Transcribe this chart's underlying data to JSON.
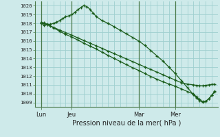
{
  "title": "Pression niveau de la mer( hPa )",
  "bg_color": "#ceeaea",
  "grid_color": "#9fcfcf",
  "line_color": "#1a5c1a",
  "ylim": [
    1008.5,
    1020.5
  ],
  "yticks": [
    1009,
    1010,
    1011,
    1012,
    1013,
    1014,
    1015,
    1016,
    1017,
    1018,
    1019,
    1020
  ],
  "xlim": [
    0,
    60
  ],
  "xtick_labels": [
    "Lun",
    "Jeu",
    "Mar",
    "Mer"
  ],
  "xtick_positions": [
    2,
    12,
    34,
    46
  ],
  "vline_positions": [
    2,
    12,
    34,
    46
  ],
  "s1_x": [
    2,
    3,
    4,
    5,
    6,
    7,
    8,
    9,
    10,
    11,
    12,
    13,
    14,
    15,
    16,
    17,
    18,
    19,
    20,
    22,
    24,
    26,
    28,
    30,
    32,
    34,
    36,
    38,
    40,
    42,
    44,
    46,
    48,
    50,
    52,
    53,
    54,
    55,
    56,
    57,
    58,
    59
  ],
  "s1_y": [
    1018.0,
    1017.8,
    1017.85,
    1017.9,
    1018.0,
    1018.15,
    1018.3,
    1018.55,
    1018.75,
    1018.85,
    1019.0,
    1019.25,
    1019.55,
    1019.8,
    1020.05,
    1019.9,
    1019.6,
    1019.2,
    1018.8,
    1018.3,
    1018.0,
    1017.6,
    1017.2,
    1016.8,
    1016.4,
    1016.0,
    1015.5,
    1014.9,
    1014.3,
    1013.7,
    1013.0,
    1012.3,
    1011.5,
    1010.7,
    1009.9,
    1009.5,
    1009.2,
    1009.05,
    1009.1,
    1009.4,
    1009.8,
    1010.3
  ],
  "s2_x": [
    2,
    3,
    4,
    5,
    6,
    8,
    10,
    12,
    14,
    16,
    18,
    20,
    22,
    24,
    26,
    28,
    30,
    32,
    34,
    36,
    38,
    40,
    42,
    44,
    46,
    48,
    50,
    52,
    53,
    54,
    55,
    56,
    57,
    58,
    59
  ],
  "s2_y": [
    1018.1,
    1018.05,
    1017.9,
    1017.7,
    1017.5,
    1017.1,
    1016.75,
    1016.45,
    1016.1,
    1015.75,
    1015.4,
    1015.1,
    1014.7,
    1014.35,
    1014.0,
    1013.65,
    1013.3,
    1012.95,
    1012.65,
    1012.3,
    1011.95,
    1011.65,
    1011.35,
    1011.1,
    1010.85,
    1010.55,
    1010.25,
    1009.95,
    1009.65,
    1009.35,
    1009.1,
    1009.15,
    1009.4,
    1009.8,
    1010.25
  ],
  "s3_x": [
    2,
    4,
    6,
    8,
    10,
    12,
    14,
    16,
    18,
    20,
    22,
    24,
    26,
    28,
    30,
    32,
    34,
    36,
    38,
    40,
    42,
    44,
    46,
    48,
    50,
    52,
    53,
    54,
    55,
    56,
    57,
    58,
    59
  ],
  "s3_y": [
    1018.05,
    1017.85,
    1017.55,
    1017.25,
    1016.95,
    1016.65,
    1016.35,
    1016.05,
    1015.75,
    1015.45,
    1015.15,
    1014.85,
    1014.55,
    1014.25,
    1013.95,
    1013.65,
    1013.35,
    1013.05,
    1012.75,
    1012.45,
    1012.15,
    1011.85,
    1011.55,
    1011.25,
    1011.1,
    1011.0,
    1010.95,
    1010.9,
    1010.9,
    1010.95,
    1011.0,
    1011.05,
    1011.1
  ]
}
